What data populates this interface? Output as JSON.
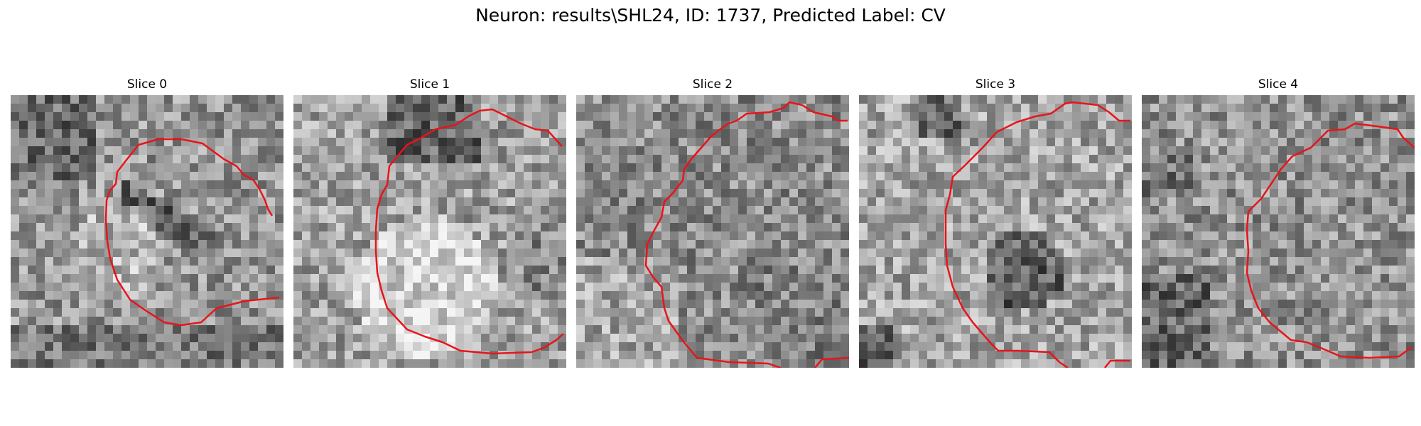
{
  "figure": {
    "title": "Neuron: results\\SHL24, ID: 1737, Predicted Label: CV"
  },
  "panels": [
    {
      "title": "Slice 0",
      "image": "grayscale-noise-slice",
      "contour_color": "#e8141b"
    },
    {
      "title": "Slice 1",
      "image": "grayscale-noise-slice",
      "contour_color": "#e8141b"
    },
    {
      "title": "Slice 2",
      "image": "grayscale-noise-slice",
      "contour_color": "#e8141b"
    },
    {
      "title": "Slice 3",
      "image": "grayscale-noise-slice",
      "contour_color": "#e8141b"
    },
    {
      "title": "Slice 4",
      "image": "grayscale-noise-slice",
      "contour_color": "#e8141b"
    }
  ]
}
